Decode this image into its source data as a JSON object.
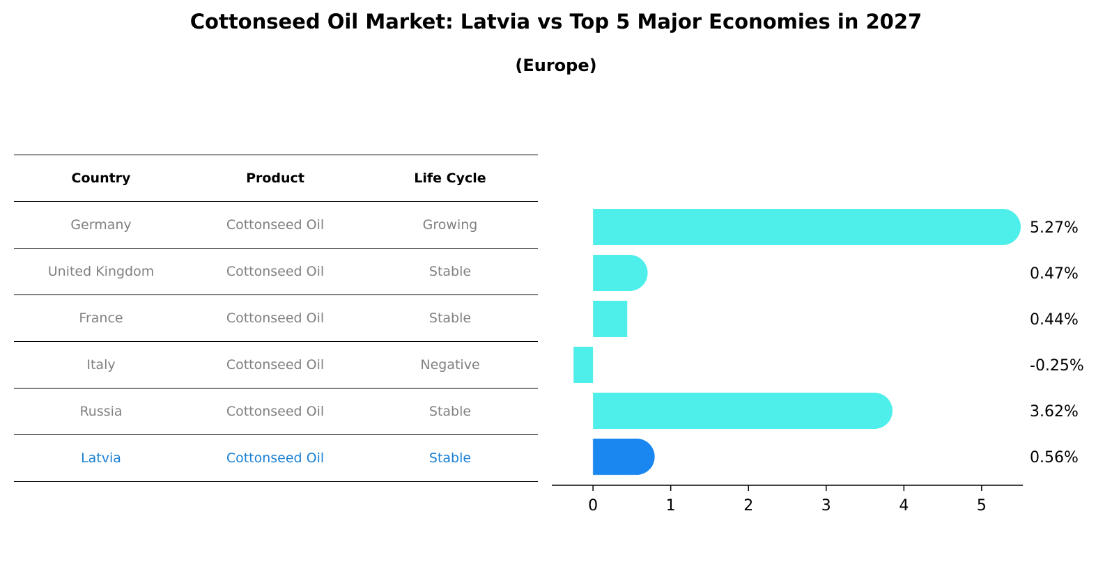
{
  "title": "Cottonseed Oil Market: Latvia vs Top 5 Major Economies in 2027",
  "subtitle": "(Europe)",
  "table": {
    "headers": [
      "Country",
      "Product",
      "Life Cycle"
    ],
    "rows": [
      {
        "country": "Germany",
        "product": "Cottonseed Oil",
        "life_cycle": "Growing"
      },
      {
        "country": "United Kingdom",
        "product": "Cottonseed Oil",
        "life_cycle": "Stable"
      },
      {
        "country": "France",
        "product": "Cottonseed Oil",
        "life_cycle": "Stable"
      },
      {
        "country": "Italy",
        "product": "Cottonseed Oil",
        "life_cycle": "Negative"
      },
      {
        "country": "Russia",
        "product": "Cottonseed Oil",
        "life_cycle": "Stable"
      },
      {
        "country": "Latvia",
        "product": "Cottonseed Oil",
        "life_cycle": "Stable"
      }
    ],
    "highlight_color": "#1a80d4",
    "text_color": "#808080"
  },
  "chart_data": {
    "type": "bar",
    "orientation": "horizontal",
    "categories": [
      "Germany",
      "United Kingdom",
      "France",
      "Italy",
      "Russia",
      "Latvia"
    ],
    "values": [
      5.27,
      0.47,
      0.44,
      -0.25,
      3.62,
      0.56
    ],
    "value_labels": [
      "5.27%",
      "0.47%",
      "0.44%",
      "-0.25%",
      "3.62%",
      "0.56%"
    ],
    "xlim": [
      -0.53,
      5.53
    ],
    "xticks": [
      0,
      1,
      2,
      3,
      4,
      5
    ],
    "bar_color": "#4eeeea",
    "highlight_color": "#1a86f0",
    "highlight_index": 5,
    "grid": false
  }
}
